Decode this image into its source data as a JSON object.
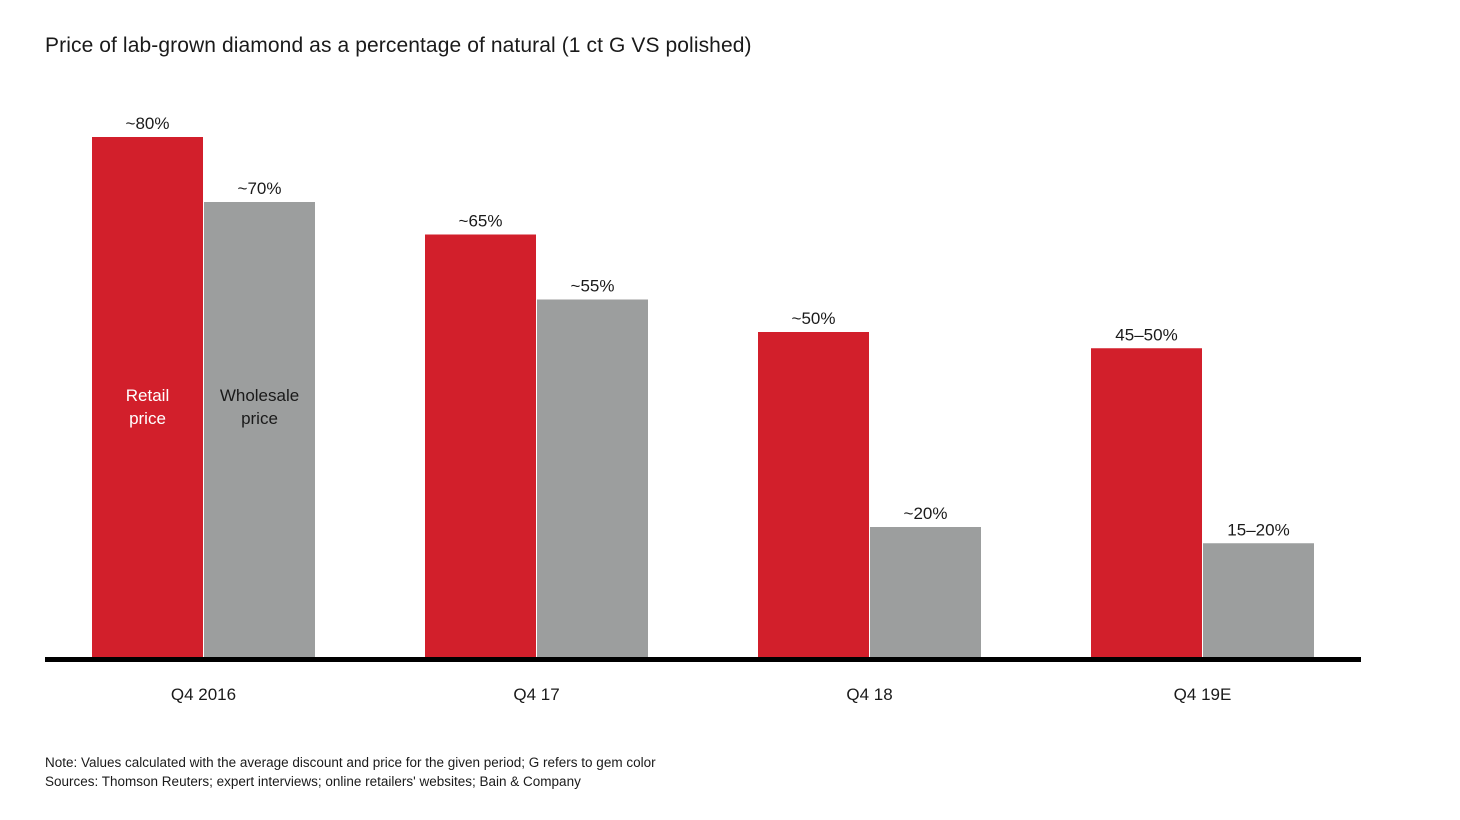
{
  "chart_data": {
    "type": "bar",
    "title": "Price of lab-grown diamond as a percentage of natural (1 ct G VS polished)",
    "xlabel": "",
    "ylabel": "",
    "ylim": [
      0,
      100
    ],
    "categories": [
      "Q4 2016",
      "Q4 17",
      "Q4 18",
      "Q4 19E"
    ],
    "series": [
      {
        "name": "Retail\nprice",
        "color": "#d21f2b",
        "values": [
          80,
          65,
          50,
          47.5
        ],
        "labels": [
          "~80%",
          "~65%",
          "~50%",
          "45–50%"
        ]
      },
      {
        "name": "Wholesale\nprice",
        "color": "#9c9e9e",
        "values": [
          70,
          55,
          20,
          17.5
        ],
        "labels": [
          "~70%",
          "~55%",
          "~20%",
          "15–20%"
        ]
      }
    ],
    "legend": "inside first category bars",
    "grid": false
  },
  "footer": {
    "note": "Note: Values calculated with the average discount and price for the given period; G refers to gem color",
    "sources": "Sources: Thomson Reuters; expert interviews; online retailers' websites; Bain & Company"
  }
}
